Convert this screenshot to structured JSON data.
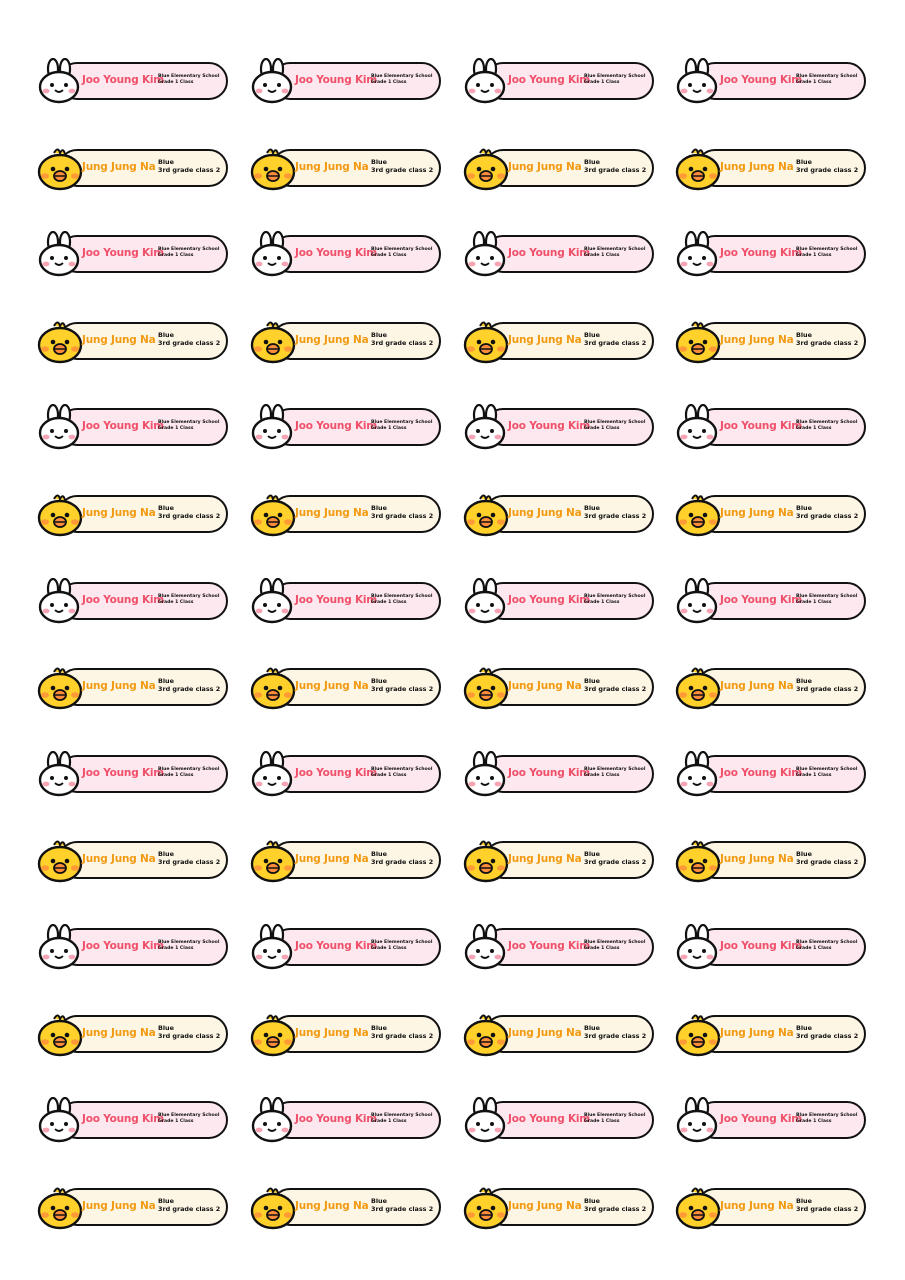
{
  "sheet": {
    "columns": 4,
    "rows": 14,
    "row_pattern": [
      "bunny",
      "chick"
    ]
  },
  "labels": {
    "bunny": {
      "icon": "bunny-face-icon",
      "name": "Joo Young Kim",
      "line1": "Blue Elementary School",
      "line2": "Grade 1 Class",
      "name_color": "#f0506a",
      "fill_color": "#fde8ef"
    },
    "chick": {
      "icon": "chick-face-icon",
      "name": "Jung Jung Na",
      "line1": "Blue",
      "line2": "3rd grade class 2",
      "name_color": "#f29a12",
      "fill_color": "#fdf6e4"
    }
  }
}
